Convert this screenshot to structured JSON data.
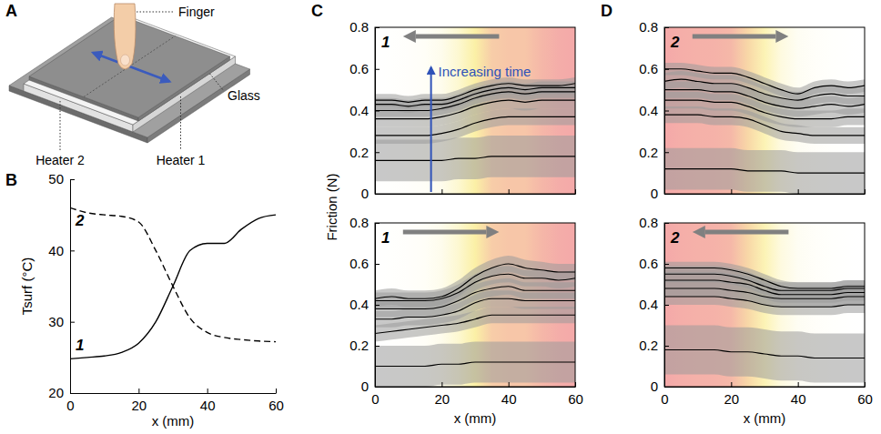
{
  "diagram": {
    "panel": "A",
    "labels": {
      "finger": "Finger",
      "glass": "Glass",
      "heater1": "Heater 1",
      "heater2": "Heater 2"
    }
  },
  "chart_data": [
    {
      "panel": "B",
      "type": "line",
      "x_label": "x (mm)",
      "y_label": "Tsurf (°C)",
      "x": [
        0,
        5,
        10,
        15,
        20,
        25,
        30,
        35,
        40,
        45,
        50,
        55,
        60
      ],
      "xlim": [
        0,
        60
      ],
      "xticks": [
        0,
        20,
        40,
        60
      ],
      "ylim": [
        20,
        50
      ],
      "yticks": [
        20,
        30,
        40,
        50
      ],
      "series": [
        {
          "name": "1",
          "color": "#000000",
          "line_style": "solid",
          "values": [
            24.8,
            25,
            25.2,
            25.7,
            27,
            30,
            35,
            40,
            41,
            41,
            43,
            44.5,
            45
          ]
        },
        {
          "name": "2",
          "color": "#000000",
          "line_style": "dashed",
          "values": [
            46,
            45.3,
            45,
            44.8,
            44,
            40,
            35,
            30.5,
            28.5,
            27.8,
            27.5,
            27.3,
            27.2
          ]
        }
      ]
    },
    {
      "panel": "C",
      "type": "line",
      "y_label": "Friction (N)",
      "annotations": [
        "1",
        "Increasing time"
      ],
      "color": "#000000",
      "tick_labels": "y",
      "x": [
        0,
        5,
        10,
        15,
        20,
        25,
        30,
        35,
        40,
        45,
        50,
        55,
        60
      ],
      "xlim": [
        0,
        60
      ],
      "xticks": [
        0,
        20,
        40,
        60
      ],
      "ylim": [
        0,
        0.8
      ],
      "yticks": [
        0,
        0.2,
        0.4,
        0.6,
        0.8
      ],
      "series": [
        {
          "values": [
            0.16,
            0.16,
            0.16,
            0.16,
            0.16,
            0.17,
            0.17,
            0.18,
            0.18,
            0.18,
            0.18,
            0.18,
            0.18
          ],
          "error": [
            0.1,
            0.1,
            0.1,
            0.1,
            0.1,
            0.1,
            0.1,
            0.1,
            0.1,
            0.1,
            0.1,
            0.1,
            0.1
          ]
        },
        {
          "values": [
            0.28,
            0.28,
            0.28,
            0.28,
            0.29,
            0.31,
            0.34,
            0.36,
            0.37,
            0.37,
            0.37,
            0.37,
            0.37
          ],
          "error": [
            0.04,
            0.04,
            0.04,
            0.04,
            0.04,
            0.04,
            0.04,
            0.04,
            0.04,
            0.04,
            0.04,
            0.04,
            0.04
          ]
        },
        {
          "values": [
            0.36,
            0.36,
            0.36,
            0.36,
            0.37,
            0.39,
            0.42,
            0.44,
            0.45,
            0.44,
            0.45,
            0.45,
            0.45
          ],
          "error": [
            0.04,
            0.04,
            0.04,
            0.04,
            0.04,
            0.04,
            0.04,
            0.04,
            0.04,
            0.04,
            0.04,
            0.04,
            0.04
          ]
        },
        {
          "values": [
            0.4,
            0.4,
            0.4,
            0.4,
            0.41,
            0.43,
            0.46,
            0.48,
            0.49,
            0.48,
            0.49,
            0.49,
            0.49
          ],
          "error": [
            0.03,
            0.03,
            0.03,
            0.03,
            0.03,
            0.03,
            0.03,
            0.03,
            0.03,
            0.03,
            0.03,
            0.03,
            0.03
          ]
        },
        {
          "values": [
            0.43,
            0.43,
            0.42,
            0.43,
            0.43,
            0.45,
            0.48,
            0.5,
            0.51,
            0.5,
            0.51,
            0.51,
            0.51
          ],
          "error": [
            0.03,
            0.03,
            0.03,
            0.03,
            0.03,
            0.03,
            0.03,
            0.03,
            0.03,
            0.03,
            0.03,
            0.03,
            0.03
          ]
        },
        {
          "values": [
            0.45,
            0.45,
            0.44,
            0.45,
            0.45,
            0.47,
            0.5,
            0.52,
            0.53,
            0.52,
            0.52,
            0.52,
            0.53
          ],
          "error": [
            0.03,
            0.03,
            0.03,
            0.03,
            0.03,
            0.03,
            0.03,
            0.03,
            0.03,
            0.03,
            0.03,
            0.03,
            0.03
          ]
        }
      ]
    },
    {
      "type": "line",
      "x_label": "x (mm)",
      "annotations": [
        "1"
      ],
      "color": "#000000",
      "x": [
        0,
        5,
        10,
        15,
        20,
        25,
        30,
        35,
        40,
        45,
        50,
        55,
        60
      ],
      "xlim": [
        0,
        60
      ],
      "xticks": [
        0,
        20,
        40,
        60
      ],
      "ylim": [
        0,
        0.8
      ],
      "yticks": [
        0,
        0.2,
        0.4,
        0.6,
        0.8
      ],
      "series": [
        {
          "values": [
            0.1,
            0.1,
            0.1,
            0.1,
            0.11,
            0.11,
            0.12,
            0.12,
            0.12,
            0.12,
            0.12,
            0.12,
            0.12
          ],
          "error": [
            0.1,
            0.1,
            0.1,
            0.1,
            0.1,
            0.1,
            0.1,
            0.1,
            0.1,
            0.1,
            0.1,
            0.1,
            0.1
          ]
        },
        {
          "values": [
            0.26,
            0.27,
            0.28,
            0.29,
            0.3,
            0.31,
            0.33,
            0.35,
            0.35,
            0.35,
            0.35,
            0.35,
            0.35
          ],
          "error": [
            0.04,
            0.04,
            0.04,
            0.04,
            0.04,
            0.04,
            0.04,
            0.04,
            0.04,
            0.04,
            0.04,
            0.04,
            0.04
          ]
        },
        {
          "values": [
            0.33,
            0.33,
            0.34,
            0.34,
            0.35,
            0.37,
            0.41,
            0.43,
            0.43,
            0.42,
            0.42,
            0.42,
            0.42
          ],
          "error": [
            0.04,
            0.04,
            0.04,
            0.04,
            0.04,
            0.04,
            0.04,
            0.04,
            0.04,
            0.04,
            0.04,
            0.04,
            0.04
          ]
        },
        {
          "values": [
            0.38,
            0.38,
            0.38,
            0.38,
            0.39,
            0.42,
            0.46,
            0.48,
            0.49,
            0.47,
            0.47,
            0.47,
            0.47
          ],
          "error": [
            0.04,
            0.04,
            0.04,
            0.04,
            0.04,
            0.04,
            0.04,
            0.04,
            0.04,
            0.04,
            0.04,
            0.04,
            0.04
          ]
        },
        {
          "values": [
            0.42,
            0.42,
            0.42,
            0.42,
            0.43,
            0.46,
            0.51,
            0.54,
            0.55,
            0.53,
            0.53,
            0.52,
            0.53
          ],
          "error": [
            0.04,
            0.04,
            0.04,
            0.04,
            0.04,
            0.04,
            0.04,
            0.04,
            0.04,
            0.04,
            0.04,
            0.04,
            0.04
          ]
        },
        {
          "values": [
            0.43,
            0.44,
            0.43,
            0.43,
            0.44,
            0.48,
            0.54,
            0.58,
            0.6,
            0.58,
            0.57,
            0.56,
            0.56
          ],
          "error": [
            0.04,
            0.04,
            0.04,
            0.04,
            0.04,
            0.04,
            0.04,
            0.04,
            0.04,
            0.04,
            0.04,
            0.04,
            0.04
          ]
        }
      ]
    },
    {
      "panel": "D",
      "type": "line",
      "annotations": [
        "2"
      ],
      "color": "#000000",
      "tick_labels": "y",
      "x": [
        0,
        5,
        10,
        15,
        20,
        25,
        30,
        35,
        40,
        45,
        50,
        55,
        60
      ],
      "xlim": [
        0,
        60
      ],
      "xticks": [
        0,
        20,
        40,
        60
      ],
      "ylim": [
        0,
        0.8
      ],
      "yticks": [
        0,
        0.2,
        0.4,
        0.6,
        0.8
      ],
      "series": [
        {
          "values": [
            0.12,
            0.12,
            0.12,
            0.12,
            0.12,
            0.11,
            0.11,
            0.11,
            0.1,
            0.1,
            0.1,
            0.1,
            0.1
          ],
          "error": [
            0.1,
            0.1,
            0.1,
            0.1,
            0.1,
            0.1,
            0.1,
            0.1,
            0.1,
            0.1,
            0.1,
            0.1,
            0.1
          ]
        },
        {
          "values": [
            0.38,
            0.38,
            0.38,
            0.37,
            0.37,
            0.36,
            0.33,
            0.3,
            0.29,
            0.28,
            0.28,
            0.28,
            0.28
          ],
          "error": [
            0.04,
            0.04,
            0.04,
            0.04,
            0.04,
            0.04,
            0.04,
            0.04,
            0.04,
            0.04,
            0.04,
            0.04,
            0.04
          ]
        },
        {
          "values": [
            0.45,
            0.45,
            0.45,
            0.44,
            0.44,
            0.42,
            0.39,
            0.37,
            0.36,
            0.36,
            0.36,
            0.37,
            0.37
          ],
          "error": [
            0.04,
            0.04,
            0.04,
            0.04,
            0.04,
            0.04,
            0.04,
            0.04,
            0.04,
            0.04,
            0.04,
            0.04,
            0.04
          ]
        },
        {
          "values": [
            0.5,
            0.5,
            0.5,
            0.49,
            0.49,
            0.47,
            0.44,
            0.42,
            0.41,
            0.42,
            0.43,
            0.42,
            0.43
          ],
          "error": [
            0.04,
            0.04,
            0.04,
            0.04,
            0.04,
            0.04,
            0.04,
            0.04,
            0.04,
            0.04,
            0.04,
            0.04,
            0.04
          ]
        },
        {
          "values": [
            0.54,
            0.55,
            0.54,
            0.53,
            0.53,
            0.51,
            0.48,
            0.46,
            0.45,
            0.47,
            0.48,
            0.47,
            0.47
          ],
          "error": [
            0.04,
            0.04,
            0.04,
            0.04,
            0.04,
            0.04,
            0.04,
            0.04,
            0.04,
            0.04,
            0.04,
            0.04,
            0.04
          ]
        },
        {
          "values": [
            0.6,
            0.6,
            0.59,
            0.58,
            0.58,
            0.56,
            0.53,
            0.5,
            0.48,
            0.51,
            0.52,
            0.51,
            0.52
          ],
          "error": [
            0.03,
            0.03,
            0.03,
            0.03,
            0.03,
            0.03,
            0.03,
            0.03,
            0.03,
            0.03,
            0.03,
            0.03,
            0.03
          ]
        }
      ]
    },
    {
      "type": "line",
      "x_label": "x (mm)",
      "annotations": [
        "2"
      ],
      "color": "#000000",
      "x": [
        0,
        5,
        10,
        15,
        20,
        25,
        30,
        35,
        40,
        45,
        50,
        55,
        60
      ],
      "xlim": [
        0,
        60
      ],
      "xticks": [
        0,
        20,
        40,
        60
      ],
      "ylim": [
        0,
        0.8
      ],
      "yticks": [
        0,
        0.2,
        0.4,
        0.6,
        0.8
      ],
      "series": [
        {
          "values": [
            0.18,
            0.18,
            0.18,
            0.18,
            0.17,
            0.17,
            0.16,
            0.15,
            0.15,
            0.14,
            0.14,
            0.14,
            0.14
          ],
          "error": [
            0.12,
            0.12,
            0.12,
            0.12,
            0.12,
            0.12,
            0.12,
            0.12,
            0.12,
            0.12,
            0.12,
            0.12,
            0.12
          ]
        },
        {
          "values": [
            0.44,
            0.44,
            0.44,
            0.44,
            0.43,
            0.42,
            0.4,
            0.39,
            0.39,
            0.39,
            0.39,
            0.4,
            0.4
          ],
          "error": [
            0.04,
            0.04,
            0.04,
            0.04,
            0.04,
            0.04,
            0.04,
            0.04,
            0.04,
            0.04,
            0.04,
            0.04,
            0.04
          ]
        },
        {
          "values": [
            0.48,
            0.48,
            0.48,
            0.48,
            0.47,
            0.46,
            0.44,
            0.43,
            0.43,
            0.43,
            0.43,
            0.44,
            0.44
          ],
          "error": [
            0.04,
            0.04,
            0.04,
            0.04,
            0.04,
            0.04,
            0.04,
            0.04,
            0.04,
            0.04,
            0.04,
            0.04,
            0.04
          ]
        },
        {
          "values": [
            0.52,
            0.52,
            0.52,
            0.52,
            0.51,
            0.5,
            0.47,
            0.45,
            0.45,
            0.45,
            0.45,
            0.46,
            0.46
          ],
          "error": [
            0.04,
            0.04,
            0.04,
            0.04,
            0.04,
            0.04,
            0.04,
            0.04,
            0.04,
            0.04,
            0.04,
            0.04,
            0.04
          ]
        },
        {
          "values": [
            0.55,
            0.55,
            0.55,
            0.55,
            0.54,
            0.52,
            0.49,
            0.47,
            0.47,
            0.47,
            0.47,
            0.48,
            0.48
          ],
          "error": [
            0.04,
            0.04,
            0.04,
            0.04,
            0.04,
            0.04,
            0.04,
            0.04,
            0.04,
            0.04,
            0.04,
            0.04,
            0.04
          ]
        },
        {
          "values": [
            0.58,
            0.58,
            0.58,
            0.58,
            0.57,
            0.55,
            0.52,
            0.49,
            0.48,
            0.48,
            0.48,
            0.49,
            0.49
          ],
          "error": [
            0.03,
            0.03,
            0.03,
            0.03,
            0.03,
            0.03,
            0.03,
            0.03,
            0.03,
            0.03,
            0.03,
            0.03,
            0.03
          ]
        }
      ]
    }
  ]
}
